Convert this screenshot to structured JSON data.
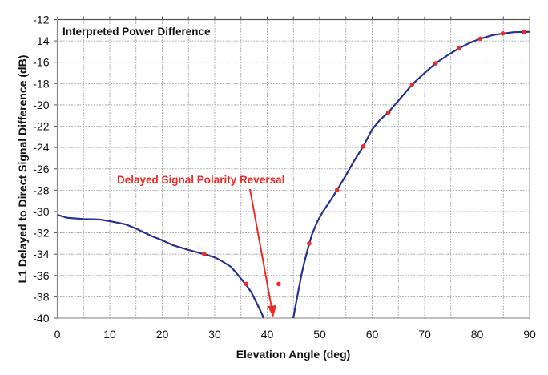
{
  "chart_data": {
    "type": "line",
    "title": "Interpreted Power Difference",
    "xlabel": "Elevation Angle (deg)",
    "ylabel": "L1 Delayed to Direct Signal Difference (dB)",
    "xlim": [
      0,
      90
    ],
    "ylim": [
      -40,
      -12
    ],
    "xticks": [
      0,
      10,
      20,
      30,
      40,
      50,
      60,
      70,
      80,
      90
    ],
    "yticks": [
      -12,
      -14,
      -16,
      -18,
      -20,
      -22,
      -24,
      -26,
      -28,
      -30,
      -32,
      -34,
      -36,
      -38,
      -40
    ],
    "grid": true,
    "annotation": {
      "text": "Delayed Signal Polarity Reversal",
      "points_to": [
        41.5,
        -40
      ]
    },
    "series": [
      {
        "name": "model-curve-low",
        "color": "#27318f",
        "x": [
          0,
          2,
          5,
          8,
          10,
          13,
          15,
          18,
          20,
          22,
          25,
          28,
          30,
          31,
          33,
          34,
          35,
          36,
          37,
          38,
          39,
          39.5
        ],
        "y": [
          -30.3,
          -30.6,
          -30.7,
          -30.75,
          -30.9,
          -31.2,
          -31.6,
          -32.3,
          -32.7,
          -33.15,
          -33.6,
          -34.0,
          -34.3,
          -34.55,
          -35.15,
          -35.7,
          -36.3,
          -36.9,
          -37.6,
          -38.6,
          -39.6,
          -40.3
        ]
      },
      {
        "name": "model-curve-high",
        "color": "#27318f",
        "x": [
          44.9,
          45.5,
          46,
          46.5,
          47,
          47.8,
          48.5,
          49.5,
          50.5,
          52,
          53.3,
          55,
          56.5,
          58.3,
          60,
          61.5,
          63.1,
          65,
          67.6,
          70,
          72.1,
          74.5,
          76.5,
          78.5,
          80.6,
          83,
          85,
          87,
          89,
          90
        ],
        "y": [
          -40.2,
          -38.6,
          -37.3,
          -36.0,
          -34.9,
          -33.4,
          -32.2,
          -31.0,
          -30.1,
          -29.0,
          -28.0,
          -26.6,
          -25.3,
          -23.9,
          -22.3,
          -21.4,
          -20.7,
          -19.6,
          -18.1,
          -17.0,
          -16.1,
          -15.3,
          -14.7,
          -14.2,
          -13.8,
          -13.45,
          -13.3,
          -13.18,
          -13.15,
          -13.15
        ]
      },
      {
        "name": "measured-points",
        "color": "#ee2b24",
        "x": [
          28,
          36,
          42.2,
          48,
          53.3,
          58.3,
          63.1,
          67.6,
          72.1,
          76.5,
          80.6,
          84.9,
          88.9
        ],
        "y": [
          -34.0,
          -36.8,
          -36.8,
          -33.0,
          -28.0,
          -23.9,
          -20.7,
          -18.1,
          -16.1,
          -14.7,
          -13.8,
          -13.3,
          -13.15
        ]
      }
    ]
  }
}
